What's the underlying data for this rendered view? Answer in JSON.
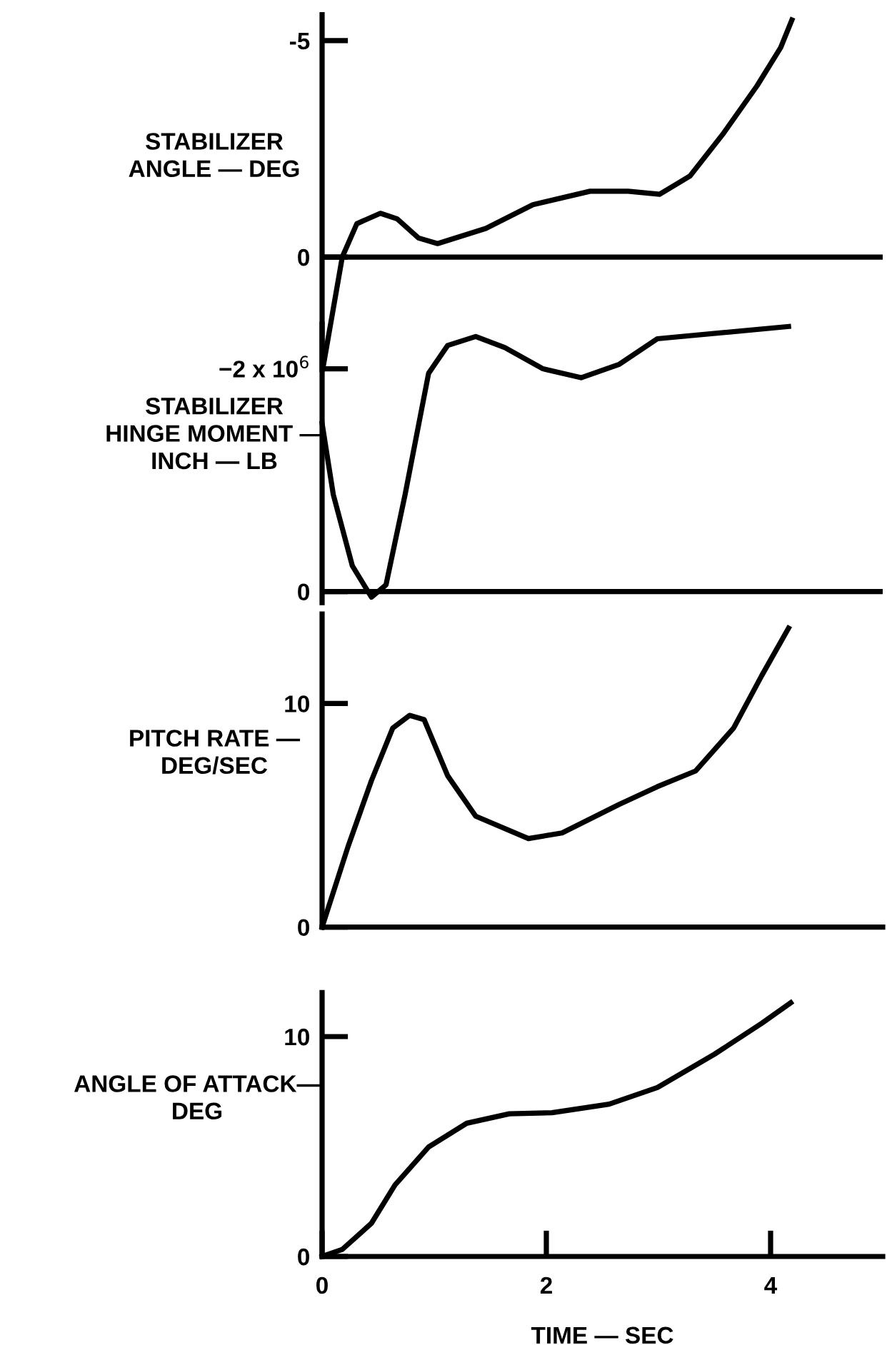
{
  "chart_data": [
    {
      "type": "line",
      "ylabel": "STABILIZER\nANGLE — DEG",
      "xlim": [
        0,
        5
      ],
      "ylim": [
        2.6,
        -5.6
      ],
      "yticks": [
        -5,
        0
      ],
      "tick_labels": "y",
      "ref_lines": [
        {
          "axis": "y",
          "value": 0
        }
      ],
      "series": [
        {
          "color": "#000000",
          "x": [
            0.01,
            0.18,
            0.31,
            0.52,
            0.67,
            0.86,
            1.03,
            1.46,
            1.88,
            2.39,
            2.73,
            3.01,
            3.28,
            3.58,
            3.88,
            4.09,
            4.19
          ],
          "values": [
            2.53,
            0,
            -0.77,
            -1.01,
            -0.88,
            -0.44,
            -0.31,
            -0.66,
            -1.21,
            -1.52,
            -1.52,
            -1.45,
            -1.87,
            -2.86,
            -3.96,
            -4.84,
            -5.48
          ]
        }
      ]
    },
    {
      "type": "line",
      "ylabel": "STABILIZER\nHINGE MOMENT —\nINCH — LB",
      "xlim": [
        0,
        5
      ],
      "ylim": [
        100000,
        -2400000
      ],
      "yticks": [
        {
          "value": -2000000,
          "label": "−2 x 10$^{6}$"
        },
        0
      ],
      "tick_labels": "y",
      "ref_lines": [
        {
          "axis": "y",
          "value": 0
        }
      ],
      "series": [
        {
          "color": "#000000",
          "x": [
            0,
            0.1,
            0.27,
            0.44,
            0.57,
            0.74,
            0.95,
            1.12,
            1.37,
            1.63,
            1.97,
            2.31,
            2.65,
            2.99,
            4.16
          ],
          "values": [
            -1510000,
            -870000,
            -230000,
            50000,
            -60000,
            -870000,
            -1960000,
            -2210000,
            -2290000,
            -2190000,
            -2000000,
            -1920000,
            -2040000,
            -2270000,
            -2380000
          ]
        }
      ]
    },
    {
      "type": "line",
      "ylabel": "PITCH RATE —\nDEG/SEC",
      "xlim": [
        0,
        5
      ],
      "ylim": [
        0,
        14
      ],
      "yticks": [
        0,
        10
      ],
      "tick_labels": "y",
      "series": [
        {
          "color": "#000000",
          "x": [
            0,
            0.23,
            0.44,
            0.63,
            0.78,
            0.91,
            1.12,
            1.37,
            1.84,
            2.14,
            2.65,
            2.99,
            3.33,
            3.67,
            3.92,
            4.16
          ],
          "values": [
            0,
            3.58,
            6.55,
            8.9,
            9.47,
            9.28,
            6.77,
            4.96,
            3.96,
            4.21,
            5.49,
            6.28,
            6.98,
            8.9,
            11.24,
            13.37
          ]
        }
      ]
    },
    {
      "type": "line",
      "ylabel": "ANGLE OF ATTACK—\nDEG",
      "xlabel": "TIME — SEC",
      "xlim": [
        0,
        5
      ],
      "xticks": [
        0,
        2,
        4
      ],
      "ylim": [
        0,
        12
      ],
      "yticks": [
        0,
        10
      ],
      "series": [
        {
          "color": "#000000",
          "x": [
            0,
            0.18,
            0.44,
            0.65,
            0.95,
            1.29,
            1.67,
            2.05,
            2.56,
            2.99,
            3.5,
            3.92,
            4.18
          ],
          "values": [
            0,
            0.32,
            1.51,
            3.25,
            4.98,
            6.06,
            6.49,
            6.54,
            6.93,
            7.68,
            9.2,
            10.6,
            11.54
          ]
        }
      ]
    }
  ]
}
